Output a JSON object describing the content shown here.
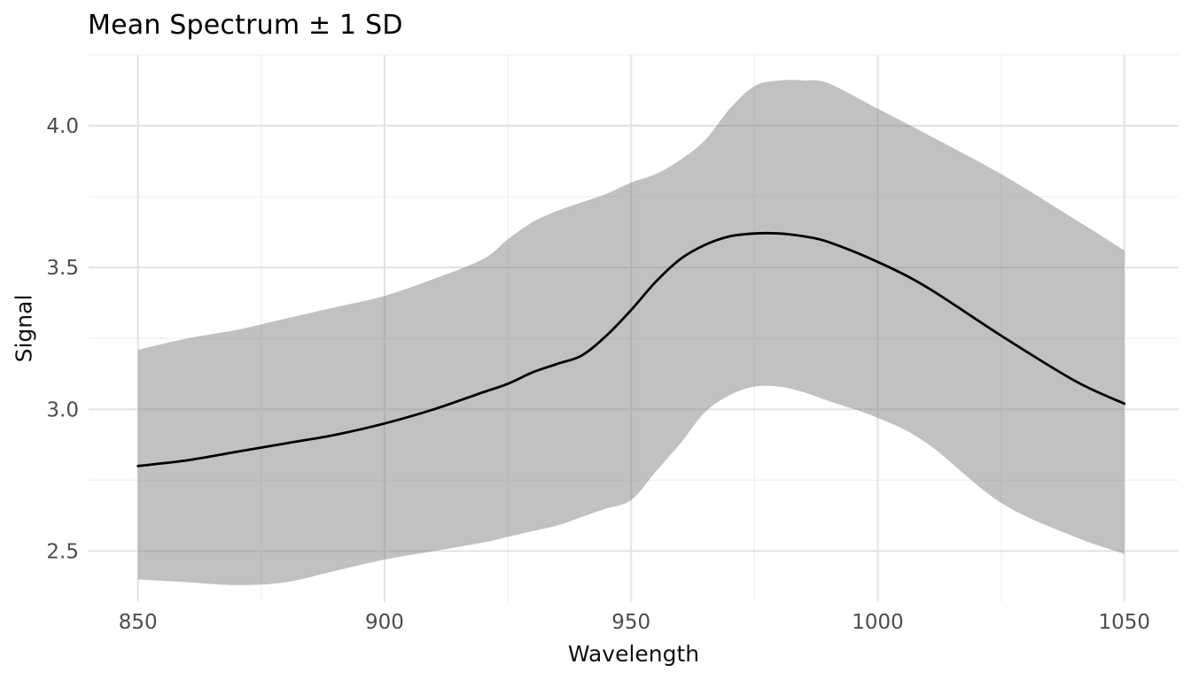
{
  "chart_data": {
    "type": "line",
    "title": "Mean Spectrum ± 1 SD",
    "xlabel": "Wavelength",
    "ylabel": "Signal",
    "xlim": [
      840,
      1061
    ],
    "ylim": [
      2.32,
      4.25
    ],
    "grid": true,
    "legend": false,
    "x_major_ticks": [
      850,
      900,
      950,
      1000,
      1050
    ],
    "x_tick_labels": [
      "850",
      "900",
      "950",
      "1000",
      "1050"
    ],
    "x_minor_ticks": [
      875,
      925,
      975,
      1025
    ],
    "y_major_ticks": [
      2.5,
      3.0,
      3.5,
      4.0
    ],
    "y_tick_labels": [
      "2.5",
      "3.0",
      "3.5",
      "4.0"
    ],
    "y_minor_ticks": [
      2.75,
      3.25,
      3.75,
      4.25
    ],
    "x": [
      850,
      860,
      870,
      880,
      890,
      900,
      910,
      920,
      925,
      930,
      935,
      940,
      945,
      950,
      955,
      960,
      965,
      970,
      975,
      980,
      985,
      990,
      1000,
      1010,
      1025,
      1040,
      1050
    ],
    "series": [
      {
        "name": "mean",
        "role": "mean-line",
        "values": [
          2.8,
          2.82,
          2.85,
          2.88,
          2.91,
          2.95,
          3.0,
          3.06,
          3.09,
          3.13,
          3.16,
          3.19,
          3.26,
          3.35,
          3.45,
          3.53,
          3.58,
          3.61,
          3.62,
          3.62,
          3.61,
          3.59,
          3.52,
          3.43,
          3.26,
          3.1,
          3.02
        ]
      },
      {
        "name": "mean + 1 SD",
        "role": "band-upper",
        "values": [
          3.21,
          3.25,
          3.28,
          3.32,
          3.36,
          3.4,
          3.46,
          3.53,
          3.6,
          3.66,
          3.7,
          3.73,
          3.76,
          3.8,
          3.83,
          3.88,
          3.95,
          4.06,
          4.14,
          4.16,
          4.16,
          4.15,
          4.06,
          3.97,
          3.83,
          3.67,
          3.56
        ]
      },
      {
        "name": "mean - 1 SD",
        "role": "band-lower",
        "values": [
          2.4,
          2.39,
          2.38,
          2.39,
          2.43,
          2.47,
          2.5,
          2.53,
          2.55,
          2.57,
          2.59,
          2.62,
          2.65,
          2.68,
          2.78,
          2.88,
          2.99,
          3.05,
          3.08,
          3.08,
          3.06,
          3.03,
          2.97,
          2.88,
          2.67,
          2.55,
          2.49
        ]
      }
    ],
    "colors": {
      "band_fill": "rgba(125,125,125,0.48)",
      "mean_line": "#000000",
      "grid_major": "#e3e3e3",
      "grid_minor": "#f1f1f1",
      "tick_label": "#4d4d4d",
      "axis_title": "#111111",
      "title": "#000000",
      "background": "#ffffff"
    }
  }
}
